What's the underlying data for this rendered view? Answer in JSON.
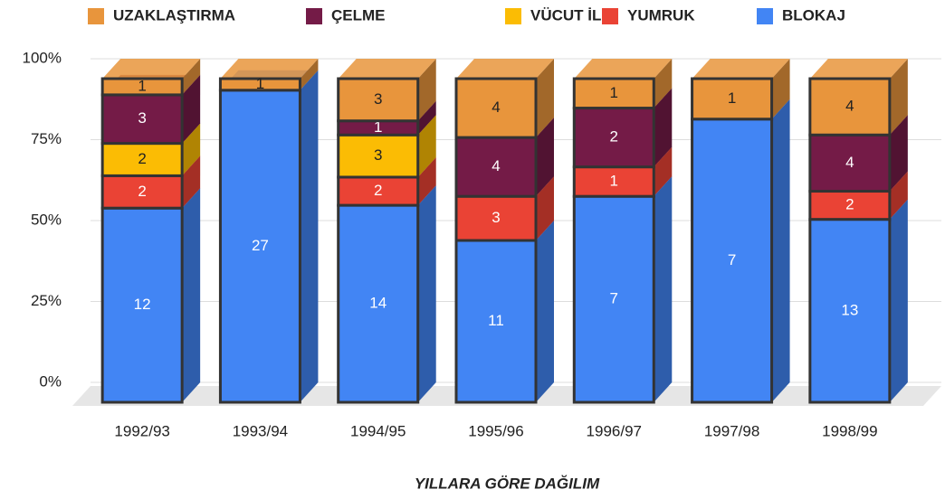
{
  "chart_data": {
    "type": "bar",
    "stacking": "percent",
    "categories": [
      "1992/93",
      "1993/94",
      "1994/95",
      "1995/96",
      "1996/97",
      "1997/98",
      "1998/99"
    ],
    "series": [
      {
        "name": "UZAKLAŞTIRMA",
        "color": "#e8953c",
        "values": [
          1,
          1,
          3,
          4,
          1,
          1,
          4
        ]
      },
      {
        "name": "ÇELME",
        "color": "#741b47",
        "values": [
          3,
          null,
          1,
          4,
          2,
          null,
          4
        ]
      },
      {
        "name": "VÜCUT İLE",
        "color": "#fbbc04",
        "values": [
          2,
          null,
          3,
          null,
          null,
          null,
          null
        ]
      },
      {
        "name": "YUMRUK",
        "color": "#ea4335",
        "values": [
          2,
          null,
          2,
          3,
          1,
          null,
          2
        ]
      },
      {
        "name": "BLOKAJ",
        "color": "#4285f4",
        "values": [
          12,
          27,
          14,
          11,
          7,
          7,
          13
        ]
      }
    ],
    "ylim": [
      0,
      100
    ],
    "yticks": [
      {
        "value": 0,
        "label": "0%"
      },
      {
        "value": 25,
        "label": "25%"
      },
      {
        "value": 50,
        "label": "50%"
      },
      {
        "value": 75,
        "label": "75%"
      },
      {
        "value": 100,
        "label": "100%"
      }
    ],
    "grid": true,
    "legend": "top",
    "xlabel": "YILLARA GÖRE DAĞILIM"
  }
}
